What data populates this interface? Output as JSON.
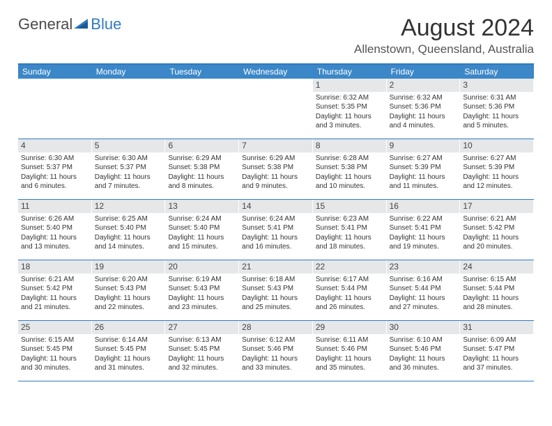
{
  "logo": {
    "text_general": "General",
    "text_blue": "Blue",
    "icon_color": "#2f7bbf"
  },
  "header": {
    "month_title": "August 2024",
    "location": "Allenstown, Queensland, Australia"
  },
  "styling": {
    "header_bar_color": "#3b87c8",
    "border_color": "#2f7bbf",
    "daynum_bg": "#e5e7e9",
    "page_bg": "#ffffff",
    "text_color": "#333333",
    "weekday_text_color": "#ffffff",
    "title_fontsize": 34,
    "location_fontsize": 17,
    "weekday_fontsize": 12,
    "daynum_fontsize": 12,
    "detail_fontsize": 10
  },
  "weekdays": [
    "Sunday",
    "Monday",
    "Tuesday",
    "Wednesday",
    "Thursday",
    "Friday",
    "Saturday"
  ],
  "weeks": [
    [
      {
        "empty": true
      },
      {
        "empty": true
      },
      {
        "empty": true
      },
      {
        "empty": true
      },
      {
        "day": "1",
        "sunrise": "Sunrise: 6:32 AM",
        "sunset": "Sunset: 5:35 PM",
        "daylight1": "Daylight: 11 hours",
        "daylight2": "and 3 minutes."
      },
      {
        "day": "2",
        "sunrise": "Sunrise: 6:32 AM",
        "sunset": "Sunset: 5:36 PM",
        "daylight1": "Daylight: 11 hours",
        "daylight2": "and 4 minutes."
      },
      {
        "day": "3",
        "sunrise": "Sunrise: 6:31 AM",
        "sunset": "Sunset: 5:36 PM",
        "daylight1": "Daylight: 11 hours",
        "daylight2": "and 5 minutes."
      }
    ],
    [
      {
        "day": "4",
        "sunrise": "Sunrise: 6:30 AM",
        "sunset": "Sunset: 5:37 PM",
        "daylight1": "Daylight: 11 hours",
        "daylight2": "and 6 minutes."
      },
      {
        "day": "5",
        "sunrise": "Sunrise: 6:30 AM",
        "sunset": "Sunset: 5:37 PM",
        "daylight1": "Daylight: 11 hours",
        "daylight2": "and 7 minutes."
      },
      {
        "day": "6",
        "sunrise": "Sunrise: 6:29 AM",
        "sunset": "Sunset: 5:38 PM",
        "daylight1": "Daylight: 11 hours",
        "daylight2": "and 8 minutes."
      },
      {
        "day": "7",
        "sunrise": "Sunrise: 6:29 AM",
        "sunset": "Sunset: 5:38 PM",
        "daylight1": "Daylight: 11 hours",
        "daylight2": "and 9 minutes."
      },
      {
        "day": "8",
        "sunrise": "Sunrise: 6:28 AM",
        "sunset": "Sunset: 5:38 PM",
        "daylight1": "Daylight: 11 hours",
        "daylight2": "and 10 minutes."
      },
      {
        "day": "9",
        "sunrise": "Sunrise: 6:27 AM",
        "sunset": "Sunset: 5:39 PM",
        "daylight1": "Daylight: 11 hours",
        "daylight2": "and 11 minutes."
      },
      {
        "day": "10",
        "sunrise": "Sunrise: 6:27 AM",
        "sunset": "Sunset: 5:39 PM",
        "daylight1": "Daylight: 11 hours",
        "daylight2": "and 12 minutes."
      }
    ],
    [
      {
        "day": "11",
        "sunrise": "Sunrise: 6:26 AM",
        "sunset": "Sunset: 5:40 PM",
        "daylight1": "Daylight: 11 hours",
        "daylight2": "and 13 minutes."
      },
      {
        "day": "12",
        "sunrise": "Sunrise: 6:25 AM",
        "sunset": "Sunset: 5:40 PM",
        "daylight1": "Daylight: 11 hours",
        "daylight2": "and 14 minutes."
      },
      {
        "day": "13",
        "sunrise": "Sunrise: 6:24 AM",
        "sunset": "Sunset: 5:40 PM",
        "daylight1": "Daylight: 11 hours",
        "daylight2": "and 15 minutes."
      },
      {
        "day": "14",
        "sunrise": "Sunrise: 6:24 AM",
        "sunset": "Sunset: 5:41 PM",
        "daylight1": "Daylight: 11 hours",
        "daylight2": "and 16 minutes."
      },
      {
        "day": "15",
        "sunrise": "Sunrise: 6:23 AM",
        "sunset": "Sunset: 5:41 PM",
        "daylight1": "Daylight: 11 hours",
        "daylight2": "and 18 minutes."
      },
      {
        "day": "16",
        "sunrise": "Sunrise: 6:22 AM",
        "sunset": "Sunset: 5:41 PM",
        "daylight1": "Daylight: 11 hours",
        "daylight2": "and 19 minutes."
      },
      {
        "day": "17",
        "sunrise": "Sunrise: 6:21 AM",
        "sunset": "Sunset: 5:42 PM",
        "daylight1": "Daylight: 11 hours",
        "daylight2": "and 20 minutes."
      }
    ],
    [
      {
        "day": "18",
        "sunrise": "Sunrise: 6:21 AM",
        "sunset": "Sunset: 5:42 PM",
        "daylight1": "Daylight: 11 hours",
        "daylight2": "and 21 minutes."
      },
      {
        "day": "19",
        "sunrise": "Sunrise: 6:20 AM",
        "sunset": "Sunset: 5:43 PM",
        "daylight1": "Daylight: 11 hours",
        "daylight2": "and 22 minutes."
      },
      {
        "day": "20",
        "sunrise": "Sunrise: 6:19 AM",
        "sunset": "Sunset: 5:43 PM",
        "daylight1": "Daylight: 11 hours",
        "daylight2": "and 23 minutes."
      },
      {
        "day": "21",
        "sunrise": "Sunrise: 6:18 AM",
        "sunset": "Sunset: 5:43 PM",
        "daylight1": "Daylight: 11 hours",
        "daylight2": "and 25 minutes."
      },
      {
        "day": "22",
        "sunrise": "Sunrise: 6:17 AM",
        "sunset": "Sunset: 5:44 PM",
        "daylight1": "Daylight: 11 hours",
        "daylight2": "and 26 minutes."
      },
      {
        "day": "23",
        "sunrise": "Sunrise: 6:16 AM",
        "sunset": "Sunset: 5:44 PM",
        "daylight1": "Daylight: 11 hours",
        "daylight2": "and 27 minutes."
      },
      {
        "day": "24",
        "sunrise": "Sunrise: 6:15 AM",
        "sunset": "Sunset: 5:44 PM",
        "daylight1": "Daylight: 11 hours",
        "daylight2": "and 28 minutes."
      }
    ],
    [
      {
        "day": "25",
        "sunrise": "Sunrise: 6:15 AM",
        "sunset": "Sunset: 5:45 PM",
        "daylight1": "Daylight: 11 hours",
        "daylight2": "and 30 minutes."
      },
      {
        "day": "26",
        "sunrise": "Sunrise: 6:14 AM",
        "sunset": "Sunset: 5:45 PM",
        "daylight1": "Daylight: 11 hours",
        "daylight2": "and 31 minutes."
      },
      {
        "day": "27",
        "sunrise": "Sunrise: 6:13 AM",
        "sunset": "Sunset: 5:45 PM",
        "daylight1": "Daylight: 11 hours",
        "daylight2": "and 32 minutes."
      },
      {
        "day": "28",
        "sunrise": "Sunrise: 6:12 AM",
        "sunset": "Sunset: 5:46 PM",
        "daylight1": "Daylight: 11 hours",
        "daylight2": "and 33 minutes."
      },
      {
        "day": "29",
        "sunrise": "Sunrise: 6:11 AM",
        "sunset": "Sunset: 5:46 PM",
        "daylight1": "Daylight: 11 hours",
        "daylight2": "and 35 minutes."
      },
      {
        "day": "30",
        "sunrise": "Sunrise: 6:10 AM",
        "sunset": "Sunset: 5:46 PM",
        "daylight1": "Daylight: 11 hours",
        "daylight2": "and 36 minutes."
      },
      {
        "day": "31",
        "sunrise": "Sunrise: 6:09 AM",
        "sunset": "Sunset: 5:47 PM",
        "daylight1": "Daylight: 11 hours",
        "daylight2": "and 37 minutes."
      }
    ]
  ]
}
